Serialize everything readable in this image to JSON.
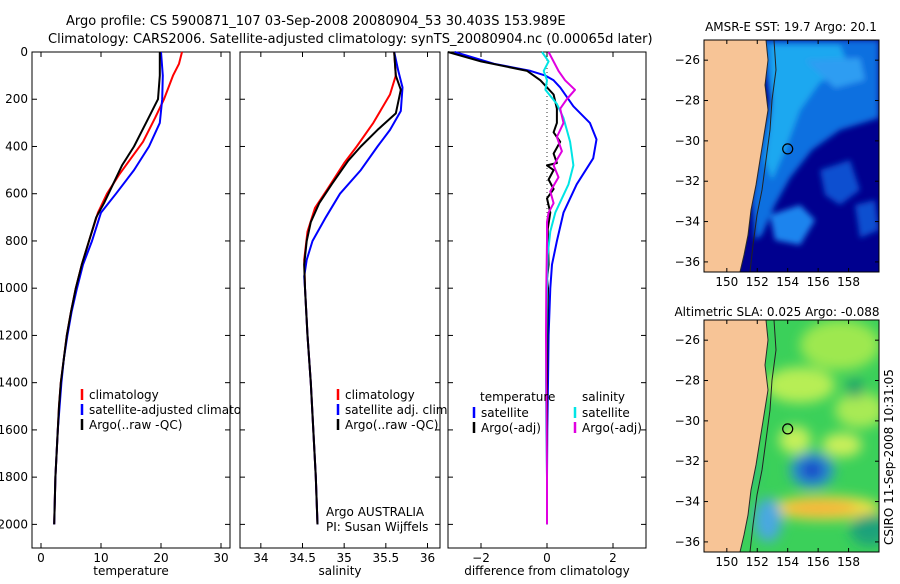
{
  "header": {
    "line1": "Argo profile: CS 5900871_107 03-Sep-2008 20080904_53 30.403S 153.989E",
    "line2": "Climatology: CARS2006. Satellite-adjusted climatology: synTS_20080904.nc (0.00065d later)"
  },
  "side_label": "CSIRO 11-Sep-2008 10:31:05",
  "credit": {
    "line1": "Argo AUSTRALIA",
    "line2": "PI: Susan Wijffels"
  },
  "colors": {
    "climatology": "#ff0000",
    "satellite": "#0000ff",
    "argo": "#000000",
    "sat_salinity": "#00e5e5",
    "argo_salinity": "#e000e0",
    "land": "#f7c496"
  },
  "y_ticks": [
    0,
    200,
    400,
    600,
    800,
    1000,
    1200,
    1400,
    1600,
    1800,
    2000
  ],
  "chart_data": [
    {
      "type": "line",
      "xlabel": "temperature",
      "xlim": [
        -1.5,
        31.5
      ],
      "xticks": [
        0,
        10,
        20,
        30
      ],
      "ylim": [
        2100,
        0
      ],
      "legend": [
        "climatology",
        "satellite-adjusted climatology",
        "Argo(..raw -QC)"
      ],
      "series": [
        {
          "name": "climatology",
          "color": "#ff0000",
          "points": [
            [
              23.5,
              0
            ],
            [
              23,
              50
            ],
            [
              22,
              100
            ],
            [
              20.5,
              200
            ],
            [
              19,
              280
            ],
            [
              17,
              380
            ],
            [
              15,
              450
            ],
            [
              13,
              520
            ],
            [
              11,
              600
            ],
            [
              9.5,
              680
            ],
            [
              8,
              800
            ],
            [
              6.8,
              900
            ],
            [
              5.8,
              1000
            ],
            [
              5,
              1100
            ],
            [
              4.3,
              1200
            ],
            [
              3.8,
              1300
            ],
            [
              3.3,
              1400
            ],
            [
              3,
              1500
            ],
            [
              2.8,
              1600
            ],
            [
              2.6,
              1700
            ],
            [
              2.4,
              1800
            ],
            [
              2.3,
              1900
            ],
            [
              2.2,
              2000
            ]
          ]
        },
        {
          "name": "satellite-adjusted climatology",
          "color": "#0000ff",
          "points": [
            [
              20,
              0
            ],
            [
              20.3,
              100
            ],
            [
              20.2,
              200
            ],
            [
              19.8,
              300
            ],
            [
              18,
              400
            ],
            [
              15.5,
              500
            ],
            [
              12.5,
              600
            ],
            [
              10,
              680
            ],
            [
              8.5,
              800
            ],
            [
              7,
              900
            ],
            [
              6,
              1000
            ],
            [
              5.1,
              1100
            ],
            [
              4.4,
              1200
            ],
            [
              3.8,
              1300
            ],
            [
              3.4,
              1400
            ],
            [
              3.1,
              1500
            ],
            [
              2.8,
              1600
            ],
            [
              2.6,
              1700
            ],
            [
              2.4,
              1800
            ],
            [
              2.3,
              1900
            ],
            [
              2.2,
              2000
            ]
          ]
        },
        {
          "name": "Argo(..raw -QC)",
          "color": "#000000",
          "points": [
            [
              19.8,
              0
            ],
            [
              19.8,
              100
            ],
            [
              19.5,
              200
            ],
            [
              17.5,
              300
            ],
            [
              15.5,
              400
            ],
            [
              13.5,
              480
            ],
            [
              12,
              560
            ],
            [
              10.5,
              640
            ],
            [
              9.2,
              700
            ],
            [
              8,
              800
            ],
            [
              6.8,
              900
            ],
            [
              5.8,
              1000
            ],
            [
              5,
              1100
            ],
            [
              4.3,
              1200
            ],
            [
              3.8,
              1300
            ],
            [
              3.3,
              1400
            ],
            [
              3,
              1500
            ],
            [
              2.8,
              1600
            ],
            [
              2.6,
              1700
            ],
            [
              2.4,
              1800
            ],
            [
              2.3,
              1900
            ],
            [
              2.2,
              2000
            ]
          ]
        }
      ]
    },
    {
      "type": "line",
      "xlabel": "salinity",
      "xlim": [
        33.75,
        36.15
      ],
      "xticks": [
        34,
        34.5,
        35,
        35.5,
        36
      ],
      "ylim": [
        2100,
        0
      ],
      "legend": [
        "climatology",
        "satellite adj. clim.",
        "Argo(..raw -QC)"
      ],
      "series": [
        {
          "name": "climatology",
          "color": "#ff0000",
          "points": [
            [
              35.6,
              0
            ],
            [
              35.62,
              100
            ],
            [
              35.55,
              180
            ],
            [
              35.35,
              300
            ],
            [
              35.15,
              400
            ],
            [
              35.0,
              470
            ],
            [
              34.8,
              580
            ],
            [
              34.65,
              660
            ],
            [
              34.56,
              760
            ],
            [
              34.52,
              880
            ],
            [
              34.53,
              1000
            ],
            [
              34.56,
              1200
            ],
            [
              34.6,
              1400
            ],
            [
              34.63,
              1600
            ],
            [
              34.66,
              1800
            ],
            [
              34.68,
              2000
            ]
          ]
        },
        {
          "name": "satellite adj. clim.",
          "color": "#0000ff",
          "points": [
            [
              35.6,
              0
            ],
            [
              35.65,
              80
            ],
            [
              35.7,
              150
            ],
            [
              35.68,
              250
            ],
            [
              35.55,
              330
            ],
            [
              35.4,
              400
            ],
            [
              35.2,
              500
            ],
            [
              34.95,
              600
            ],
            [
              34.78,
              700
            ],
            [
              34.62,
              800
            ],
            [
              34.55,
              880
            ],
            [
              34.52,
              950
            ],
            [
              34.53,
              1000
            ],
            [
              34.56,
              1200
            ],
            [
              34.6,
              1400
            ],
            [
              34.63,
              1600
            ],
            [
              34.66,
              1800
            ],
            [
              34.68,
              2000
            ]
          ]
        },
        {
          "name": "Argo(..raw -QC)",
          "color": "#000000",
          "points": [
            [
              35.6,
              0
            ],
            [
              35.62,
              100
            ],
            [
              35.68,
              160
            ],
            [
              35.62,
              260
            ],
            [
              35.4,
              330
            ],
            [
              35.2,
              400
            ],
            [
              35.05,
              460
            ],
            [
              34.85,
              560
            ],
            [
              34.7,
              640
            ],
            [
              34.6,
              720
            ],
            [
              34.55,
              800
            ],
            [
              34.52,
              900
            ],
            [
              34.53,
              1000
            ],
            [
              34.56,
              1200
            ],
            [
              34.6,
              1400
            ],
            [
              34.63,
              1600
            ],
            [
              34.66,
              1800
            ],
            [
              34.68,
              2000
            ]
          ]
        }
      ]
    },
    {
      "type": "line",
      "xlabel": "difference from climatology",
      "xlim": [
        -3,
        3
      ],
      "xticks": [
        -2,
        0,
        2
      ],
      "ylim": [
        2100,
        0
      ],
      "legend": [
        "temperature",
        "satellite",
        "Argo(-adj)",
        "salinity",
        "satellite",
        "Argo(-adj)"
      ],
      "series": [
        {
          "name": "satellite",
          "color": "#0000ff",
          "points": [
            [
              -2.8,
              0
            ],
            [
              -1.6,
              50
            ],
            [
              -0.5,
              80
            ],
            [
              -0.05,
              100
            ],
            [
              0.2,
              120
            ],
            [
              0.4,
              150
            ],
            [
              0.8,
              230
            ],
            [
              1.3,
              300
            ],
            [
              1.5,
              370
            ],
            [
              1.4,
              450
            ],
            [
              0.9,
              560
            ],
            [
              0.5,
              680
            ],
            [
              0.3,
              800
            ],
            [
              0.15,
              900
            ],
            [
              0.1,
              1000
            ],
            [
              0.05,
              1200
            ],
            [
              0.03,
              1400
            ],
            [
              0.01,
              1600
            ],
            [
              0,
              1800
            ],
            [
              0,
              2000
            ]
          ]
        },
        {
          "name": "Argo(-adj)",
          "color": "#000000",
          "points": [
            [
              -3,
              0
            ],
            [
              -2,
              40
            ],
            [
              -0.6,
              80
            ],
            [
              -0.2,
              120
            ],
            [
              0.2,
              180
            ],
            [
              0.3,
              240
            ],
            [
              0.3,
              300
            ],
            [
              0.2,
              340
            ],
            [
              0.4,
              380
            ],
            [
              0.2,
              430
            ],
            [
              0.3,
              470
            ],
            [
              0,
              480
            ],
            [
              0.2,
              500
            ],
            [
              0.05,
              540
            ],
            [
              0.2,
              580
            ],
            [
              0,
              620
            ],
            [
              0.1,
              680
            ],
            [
              0.02,
              750
            ],
            [
              0.05,
              900
            ],
            [
              0,
              960
            ],
            [
              0.03,
              1000
            ],
            [
              0.01,
              1200
            ],
            [
              0,
              1400
            ],
            [
              0,
              1600
            ],
            [
              0,
              1800
            ],
            [
              0,
              2000
            ]
          ]
        },
        {
          "name": "satellite",
          "color": "#00e5e5",
          "points": [
            [
              -0.15,
              0
            ],
            [
              0.05,
              40
            ],
            [
              -0.1,
              80
            ],
            [
              0,
              120
            ],
            [
              -0.05,
              160
            ],
            [
              0.3,
              220
            ],
            [
              0.5,
              280
            ],
            [
              0.6,
              330
            ],
            [
              0.7,
              380
            ],
            [
              0.75,
              430
            ],
            [
              0.8,
              480
            ],
            [
              0.65,
              560
            ],
            [
              0.45,
              620
            ],
            [
              0.25,
              680
            ],
            [
              0.1,
              760
            ],
            [
              0.02,
              860
            ],
            [
              0,
              1000
            ],
            [
              -0.02,
              1200
            ],
            [
              -0.03,
              1400
            ],
            [
              -0.02,
              1600
            ],
            [
              0,
              1800
            ],
            [
              0,
              2000
            ]
          ]
        },
        {
          "name": "Argo(-adj)",
          "color": "#e000e0",
          "points": [
            [
              0.05,
              0
            ],
            [
              0.35,
              80
            ],
            [
              0.55,
              120
            ],
            [
              0.85,
              160
            ],
            [
              0.6,
              200
            ],
            [
              0.4,
              240
            ],
            [
              0.5,
              300
            ],
            [
              0.3,
              360
            ],
            [
              0.45,
              420
            ],
            [
              0.2,
              480
            ],
            [
              0.35,
              530
            ],
            [
              0.1,
              590
            ],
            [
              0.2,
              640
            ],
            [
              0.05,
              680
            ],
            [
              0,
              720
            ],
            [
              0,
              800
            ],
            [
              -0.02,
              1000
            ],
            [
              -0.03,
              1200
            ],
            [
              -0.02,
              1400
            ],
            [
              -0.01,
              1600
            ],
            [
              0,
              1800
            ],
            [
              0,
              2000
            ]
          ]
        }
      ]
    },
    {
      "type": "heatmap",
      "title": "AMSR-E SST: 19.7 Argo: 20.1",
      "xticks": [
        150,
        152,
        154,
        156,
        158
      ],
      "yticks": [
        -26,
        -28,
        -30,
        -32,
        -34,
        -36
      ],
      "xlim": [
        148.5,
        160
      ],
      "ylim": [
        -36.5,
        -25
      ],
      "marker": [
        154,
        -30.4
      ]
    },
    {
      "type": "heatmap",
      "title": "Altimetric SLA: 0.025 Argo: -0.088",
      "xticks": [
        150,
        152,
        154,
        156,
        158
      ],
      "yticks": [
        -26,
        -28,
        -30,
        -32,
        -34,
        -36
      ],
      "xlim": [
        148.5,
        160
      ],
      "ylim": [
        -36.5,
        -25
      ],
      "marker": [
        154,
        -30.4
      ]
    }
  ]
}
